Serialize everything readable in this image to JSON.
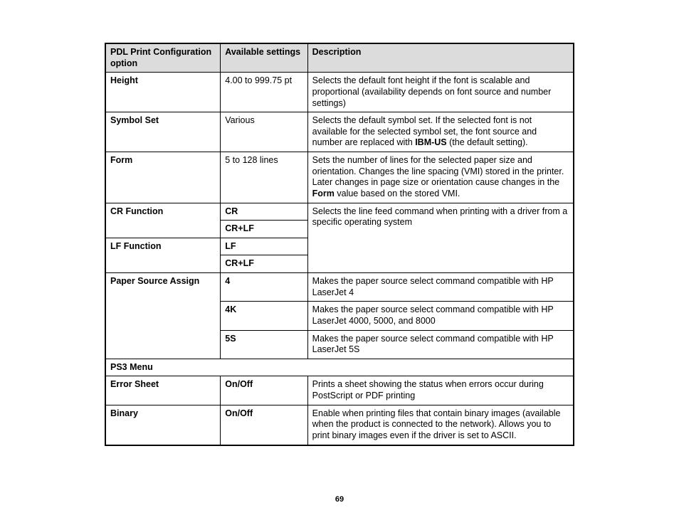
{
  "headers": {
    "option": "PDL Print Configuration option",
    "settings": "Available settings",
    "description": "Description"
  },
  "rows": {
    "height": {
      "option": "Height",
      "setting": "4.00 to 999.75 pt",
      "desc": "Selects the default font height if the font is scalable and proportional (availability depends on font source and number settings)"
    },
    "symbolset": {
      "option": "Symbol Set",
      "setting": "Various",
      "desc_pre": "Selects the default symbol set. If the selected font is not available for the selected symbol set, the font source and number are replaced with ",
      "desc_bold": "IBM-US",
      "desc_post": " (the default setting)."
    },
    "form": {
      "option": "Form",
      "setting": "5 to 128 lines",
      "desc_pre": "Sets the number of lines for the selected paper size and orientation. Changes the line spacing (VMI) stored in the printer. Later changes in page size or orientation cause changes in the ",
      "desc_bold": "Form",
      "desc_post": " value based on the stored VMI."
    },
    "cr": {
      "option": "CR Function",
      "setting1": "CR",
      "setting2": "CR+LF",
      "shared_desc": "Selects the line feed command when printing with a driver from a specific operating system"
    },
    "lf": {
      "option": "LF Function",
      "setting1": "LF",
      "setting2": "CR+LF"
    },
    "psa": {
      "option": "Paper Source Assign",
      "s1": "4",
      "d1": "Makes the paper source select command compatible with HP LaserJet 4",
      "s2": "4K",
      "d2": "Makes the paper source select command compatible with HP LaserJet 4000, 5000, and 8000",
      "s3": "5S",
      "d3": "Makes the paper source select command compatible with HP LaserJet 5S"
    },
    "ps3menu": {
      "label": "PS3 Menu"
    },
    "errorsheet": {
      "option": "Error Sheet",
      "setting": "On/Off",
      "desc": "Prints a sheet showing the status when errors occur during PostScript or PDF printing"
    },
    "binary": {
      "option": "Binary",
      "setting": "On/Off",
      "desc": "Enable when printing files that contain binary images (available when the product is connected to the network). Allows you to print binary images even if the driver is set to ASCII."
    }
  },
  "page_number": "69"
}
